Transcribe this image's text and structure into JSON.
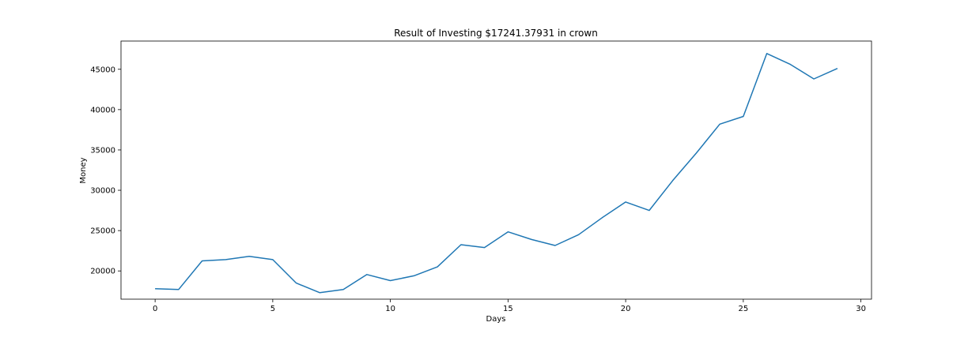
{
  "chart_data": {
    "type": "line",
    "title": "Result of Investing $17241.37931 in crown",
    "xlabel": "Days",
    "ylabel": "Money",
    "xlim": [
      -1.45,
      30.45
    ],
    "ylim": [
      16500,
      48500
    ],
    "xticks": [
      0,
      5,
      10,
      15,
      20,
      25,
      30
    ],
    "yticks": [
      20000,
      25000,
      30000,
      35000,
      40000,
      45000
    ],
    "grid": false,
    "series": [
      {
        "color": "#1f77b4",
        "x": [
          0,
          1,
          2,
          3,
          4,
          5,
          6,
          7,
          8,
          9,
          10,
          11,
          12,
          13,
          14,
          15,
          16,
          17,
          18,
          19,
          20,
          21,
          22,
          23,
          24,
          25,
          26,
          27,
          28,
          29
        ],
        "y": [
          17800,
          17700,
          21250,
          21400,
          21800,
          21400,
          18500,
          17300,
          17700,
          19550,
          18800,
          19400,
          20500,
          23250,
          22900,
          24850,
          23900,
          23150,
          24500,
          26600,
          28550,
          27500,
          31200,
          34600,
          38200,
          39150,
          46950,
          45600,
          43800,
          45100
        ]
      }
    ]
  }
}
